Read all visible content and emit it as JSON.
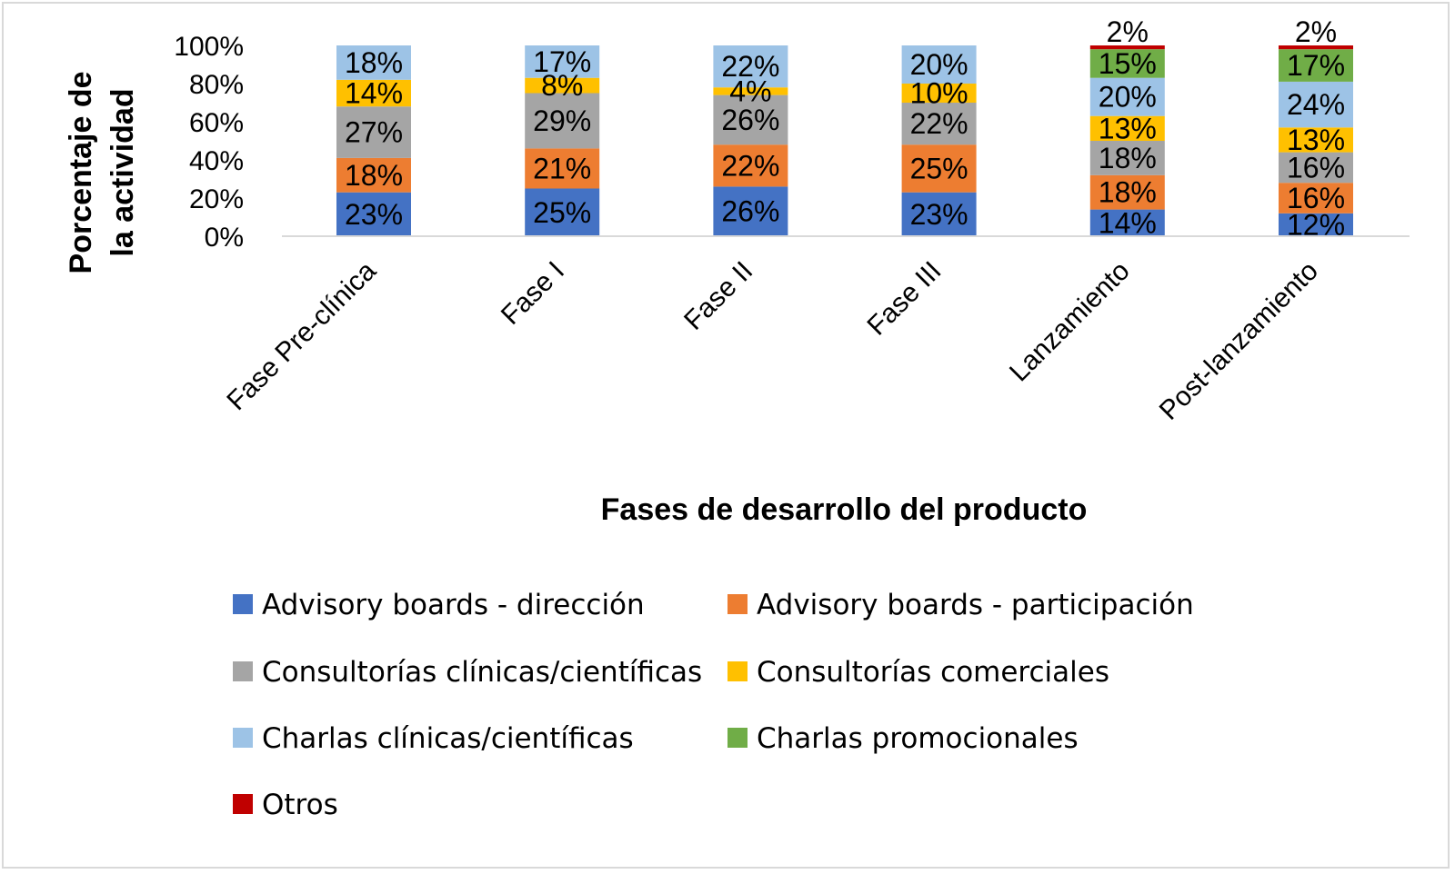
{
  "chart_data": {
    "type": "bar",
    "stacked": true,
    "percent_stacked": true,
    "xlabel": "Fases de desarrollo del producto",
    "ylabel_lines": [
      "Porcentaje de",
      "la actividad"
    ],
    "ylim": [
      0,
      100
    ],
    "yticks": [
      "0%",
      "20%",
      "40%",
      "60%",
      "80%",
      "100%"
    ],
    "grid": false,
    "legend_position": "bottom",
    "categories": [
      "Fase Pre-clínica",
      "Fase I",
      "Fase II",
      "Fase III",
      "Lanzamiento",
      "Post-lanzamiento"
    ],
    "series": [
      {
        "name": "Advisory boards - dirección",
        "color": "#4472C4",
        "values": [
          23,
          25,
          26,
          23,
          14,
          12
        ],
        "labels": [
          "23%",
          "25%",
          "26%",
          "23%",
          "14%",
          "12%"
        ]
      },
      {
        "name": "Advisory boards - participación",
        "color": "#ED7D31",
        "values": [
          18,
          21,
          22,
          25,
          18,
          16
        ],
        "labels": [
          "18%",
          "21%",
          "22%",
          "25%",
          "18%",
          "16%"
        ]
      },
      {
        "name": "Consultorías clínicas/científicas",
        "color": "#A5A5A5",
        "values": [
          27,
          29,
          26,
          22,
          18,
          16
        ],
        "labels": [
          "27%",
          "29%",
          "26%",
          "22%",
          "18%",
          "16%"
        ]
      },
      {
        "name": "Consultorías comerciales",
        "color": "#FFC000",
        "values": [
          14,
          8,
          4,
          10,
          13,
          13
        ],
        "labels": [
          "14%",
          "8%",
          "4%",
          "10%",
          "13%",
          "13%"
        ]
      },
      {
        "name": "Charlas clínicas/científicas",
        "color": "#9DC3E6",
        "values": [
          18,
          17,
          22,
          20,
          20,
          24
        ],
        "labels": [
          "18%",
          "17%",
          "22%",
          "20%",
          "20%",
          "24%"
        ]
      },
      {
        "name": "Charlas promocionales",
        "color": "#70AD47",
        "values": [
          0,
          0,
          0,
          0,
          15,
          17
        ],
        "labels": [
          "",
          "",
          "",
          "",
          "15%",
          "17%"
        ]
      },
      {
        "name": "Otros",
        "color": "#C00000",
        "values": [
          0,
          0,
          0,
          0,
          2,
          2
        ],
        "labels": [
          "",
          "",
          "",
          "",
          "2%",
          "2%"
        ]
      }
    ]
  }
}
